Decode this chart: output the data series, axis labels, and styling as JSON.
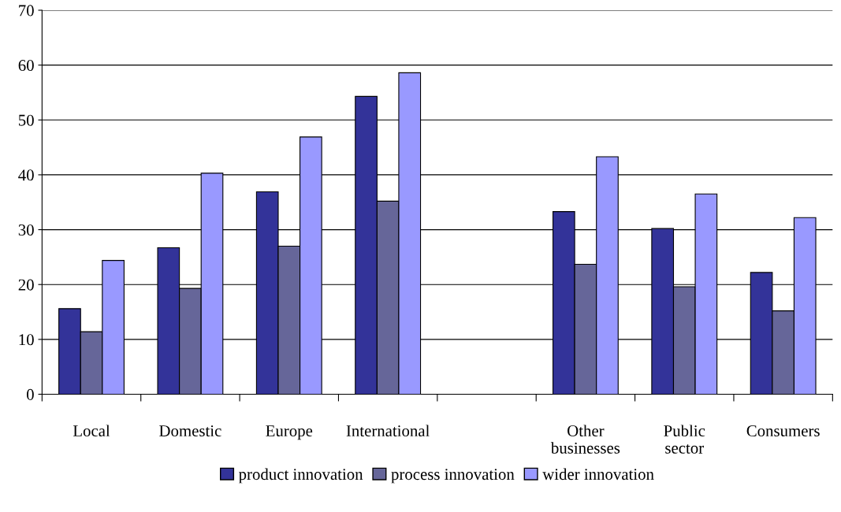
{
  "chart_data": {
    "type": "bar",
    "categories": [
      "Local",
      "Domestic",
      "Europe",
      "International",
      null,
      "Other\nbusinesses",
      "Public\nsector",
      "Consumers"
    ],
    "series": [
      {
        "name": "product innovation",
        "color": "#333399",
        "values": [
          15.6,
          26.7,
          36.9,
          54.3,
          null,
          33.3,
          30.2,
          22.2
        ]
      },
      {
        "name": "process innovation",
        "color": "#666699",
        "values": [
          11.4,
          19.3,
          27.0,
          35.2,
          null,
          23.7,
          19.6,
          15.2
        ]
      },
      {
        "name": "wider innovation",
        "color": "#9999ff",
        "values": [
          24.4,
          40.3,
          46.9,
          58.6,
          null,
          43.3,
          36.5,
          32.2
        ]
      }
    ],
    "ylim": [
      0,
      70
    ],
    "yticks": [
      0,
      10,
      20,
      30,
      40,
      50,
      60,
      70
    ],
    "grid": "y",
    "legend": "bottom"
  }
}
